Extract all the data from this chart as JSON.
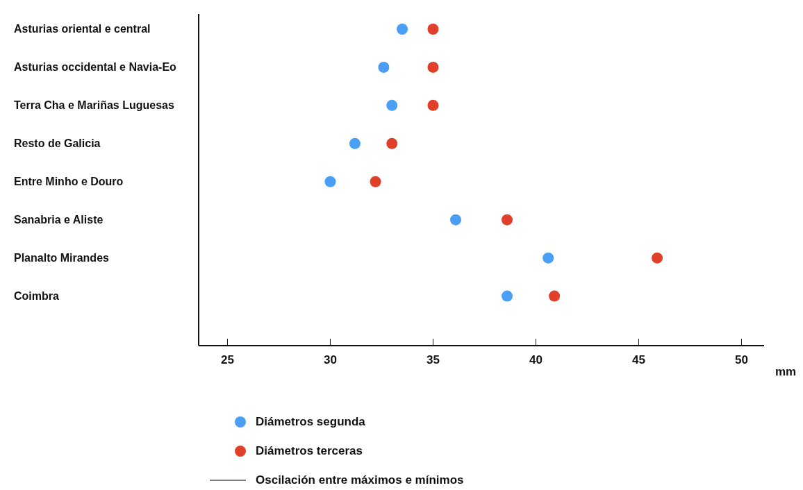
{
  "chart_data": {
    "type": "scatter",
    "orientation": "horizontal",
    "xlabel": "mm",
    "categories": [
      "Asturias oriental e central",
      "Asturias occidental e Navia-Eo",
      "Terra Cha e Mariñas Luguesas",
      "Resto de Galicia",
      "Entre Minho e Douro",
      "Sanabria e Aliste",
      "Planalto Mirandes",
      "Coimbra"
    ],
    "series": [
      {
        "name": "Diámetros segunda",
        "color": "#4a9ff5",
        "values": [
          33.5,
          32.6,
          33.0,
          31.2,
          30.0,
          36.1,
          40.6,
          38.6
        ]
      },
      {
        "name": "Diámetros terceras",
        "color": "#e0402a",
        "values": [
          35.0,
          35.0,
          35.0,
          33.0,
          32.2,
          38.6,
          45.9,
          40.9
        ]
      },
      {
        "name": "Oscilación entre máximos e mínimos",
        "type": "line",
        "color": "#000000",
        "values": [
          null,
          null,
          null,
          null,
          null,
          null,
          null,
          null
        ]
      }
    ],
    "xlim": [
      23.6,
      51.1
    ],
    "xticks": [
      25,
      30,
      35,
      40,
      45,
      50
    ],
    "legend": "bottom",
    "marker": "circle"
  }
}
